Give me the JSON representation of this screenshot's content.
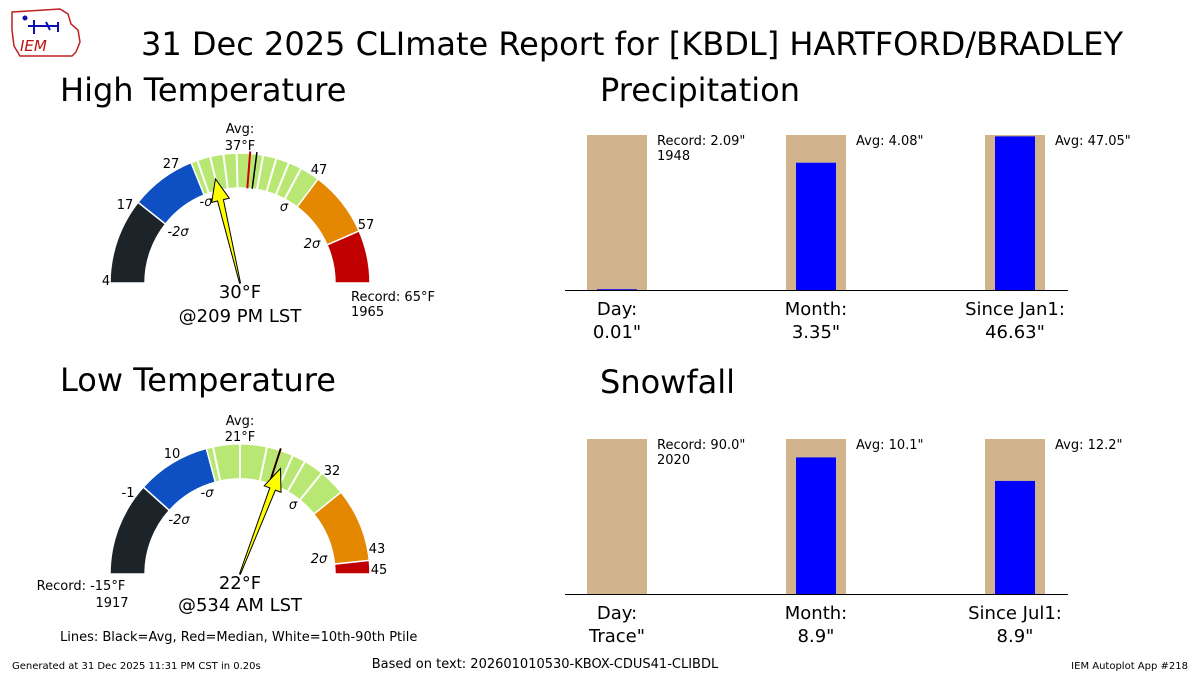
{
  "title": "31 Dec 2025 CLImate Report for [KBDL] HARTFORD/BRADLEY",
  "logo_text": "IEM",
  "colors": {
    "below_2sigma": "#1c2429",
    "below_1sigma": "#0f4fc4",
    "normal": "#b8e873",
    "above_1sigma": "#e38800",
    "above_2sigma": "#c00000",
    "needle": "#ffff00",
    "avg_line": "#000000",
    "median_line": "#d00000",
    "ptile_line": "#ffffff",
    "normal_bar": "#d1b48c",
    "observed_bar": "#0000ff"
  },
  "chart_data": [
    {
      "type": "gauge",
      "id": "high",
      "title": "High Temperature",
      "range": [
        4,
        65
      ],
      "bands": [
        {
          "from": 4,
          "to": 17,
          "level": "below_2sigma"
        },
        {
          "from": 17,
          "to": 27,
          "level": "below_1sigma"
        },
        {
          "from": 27,
          "to": 47,
          "level": "normal"
        },
        {
          "from": 47,
          "to": 57,
          "level": "above_1sigma"
        },
        {
          "from": 57,
          "to": 65,
          "level": "above_2sigma"
        }
      ],
      "band_labels": [
        "4",
        "17",
        "27",
        "47",
        "57"
      ],
      "sigma_labels": [
        "-2σ",
        "-σ",
        "σ",
        "2σ"
      ],
      "avg": 37,
      "avg_label": "Avg:",
      "avg_value_label": "37°F",
      "median": 36,
      "percentiles": [
        28,
        30,
        32,
        34,
        38,
        40,
        42,
        44
      ],
      "observed": 30,
      "observed_label": "30°F",
      "time_label": "@209 PM LST",
      "record_label": "Record: 65°F",
      "record_year": "1965"
    },
    {
      "type": "gauge",
      "id": "low",
      "title": "Low Temperature",
      "range": [
        -15,
        45
      ],
      "bands": [
        {
          "from": -15,
          "to": -1,
          "level": "below_2sigma"
        },
        {
          "from": -1,
          "to": 10,
          "level": "below_1sigma"
        },
        {
          "from": 10,
          "to": 32,
          "level": "normal"
        },
        {
          "from": 32,
          "to": 43,
          "level": "above_1sigma"
        },
        {
          "from": 43,
          "to": 45,
          "level": "above_2sigma"
        }
      ],
      "band_labels": [
        "-1",
        "10",
        "32",
        "43",
        "45"
      ],
      "sigma_labels": [
        "-2σ",
        "-σ",
        "σ",
        "2σ"
      ],
      "avg": 21,
      "avg_label": "Avg:",
      "avg_value_label": "21°F",
      "median": 21,
      "percentiles": [
        11,
        15,
        19,
        23,
        25,
        28
      ],
      "observed": 22,
      "observed_label": "22°F",
      "time_label": "@534 AM LST",
      "record_label": "Record: -15°F",
      "record_year": "1917"
    },
    {
      "type": "bar",
      "id": "precip",
      "title": "Precipitation",
      "categories": [
        "Day:",
        "Month:",
        "Since Jan1:"
      ],
      "observed": [
        0.01,
        3.35,
        46.63
      ],
      "observed_labels": [
        "0.01\"",
        "3.35\"",
        "46.63\""
      ],
      "normals": [
        2.09,
        4.08,
        47.05
      ],
      "normal_labels": [
        "Record: 2.09\"",
        "Avg: 4.08\"",
        "Avg: 47.05\""
      ],
      "record_year": "1948",
      "ylim_fraction": [
        0,
        1
      ]
    },
    {
      "type": "bar",
      "id": "snow",
      "title": "Snowfall",
      "categories": [
        "Day:",
        "Month:",
        "Since Jul1:"
      ],
      "observed": [
        0.0,
        8.9,
        8.9
      ],
      "observed_labels": [
        "Trace\"",
        "8.9\"",
        "8.9\""
      ],
      "normals": [
        90.0,
        10.1,
        12.2
      ],
      "normal_labels": [
        "Record: 90.0\"",
        "Avg: 10.1\"",
        "Avg: 12.2\""
      ],
      "record_year": "2020",
      "ylim_fraction": [
        0,
        1
      ]
    }
  ],
  "legend_note": "Lines: Black=Avg, Red=Median, White=10th-90th Ptile",
  "footer": {
    "generated": "Generated at 31 Dec 2025 11:31 PM CST in 0.20s",
    "based_on": "Based on text: 202601010530-KBOX-CDUS41-CLIBDL",
    "app": "IEM Autoplot App #218"
  }
}
